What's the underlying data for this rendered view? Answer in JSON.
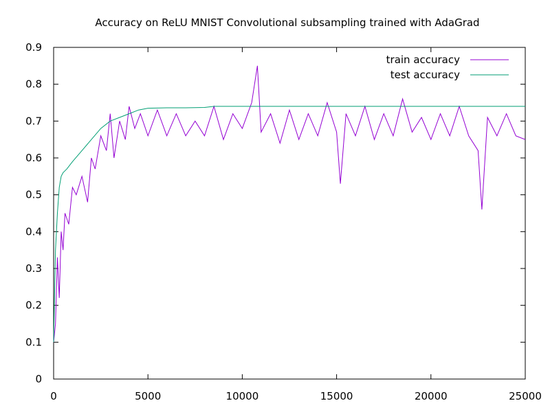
{
  "chart_data": {
    "type": "line",
    "title": "Accuracy on ReLU MNIST Convolutional subsampling trained with AdaGrad",
    "xlabel": "",
    "ylabel": "",
    "xlim": [
      0,
      25000
    ],
    "ylim": [
      0,
      0.9
    ],
    "x_ticks": [
      0,
      5000,
      10000,
      15000,
      20000,
      25000
    ],
    "y_ticks": [
      0,
      0.1,
      0.2,
      0.3,
      0.4,
      0.5,
      0.6,
      0.7,
      0.8,
      0.9
    ],
    "grid": false,
    "legend_position": "top-right",
    "series": [
      {
        "name": "train accuracy",
        "color": "#9400d3",
        "x": [
          0,
          100,
          200,
          300,
          400,
          500,
          600,
          800,
          1000,
          1200,
          1500,
          1800,
          2000,
          2200,
          2500,
          2800,
          3000,
          3200,
          3500,
          3800,
          4000,
          4300,
          4600,
          5000,
          5500,
          6000,
          6500,
          7000,
          7500,
          8000,
          8500,
          9000,
          9500,
          10000,
          10500,
          10800,
          11000,
          11500,
          12000,
          12500,
          13000,
          13500,
          14000,
          14500,
          15000,
          15200,
          15500,
          16000,
          16500,
          17000,
          17500,
          18000,
          18500,
          19000,
          19500,
          20000,
          20500,
          21000,
          21500,
          22000,
          22500,
          22700,
          23000,
          23500,
          24000,
          24500,
          25000
        ],
        "y": [
          0.1,
          0.15,
          0.33,
          0.22,
          0.4,
          0.35,
          0.45,
          0.42,
          0.52,
          0.5,
          0.55,
          0.48,
          0.6,
          0.57,
          0.66,
          0.62,
          0.72,
          0.6,
          0.7,
          0.65,
          0.74,
          0.68,
          0.72,
          0.66,
          0.73,
          0.66,
          0.72,
          0.66,
          0.7,
          0.66,
          0.74,
          0.65,
          0.72,
          0.68,
          0.75,
          0.85,
          0.67,
          0.72,
          0.64,
          0.73,
          0.65,
          0.72,
          0.66,
          0.75,
          0.67,
          0.53,
          0.72,
          0.66,
          0.74,
          0.65,
          0.72,
          0.66,
          0.76,
          0.67,
          0.71,
          0.65,
          0.72,
          0.66,
          0.74,
          0.66,
          0.62,
          0.46,
          0.71,
          0.66,
          0.72,
          0.66,
          0.65
        ]
      },
      {
        "name": "test accuracy",
        "color": "#009e73",
        "x": [
          0,
          100,
          200,
          300,
          400,
          500,
          700,
          1000,
          1500,
          2000,
          2500,
          3000,
          3500,
          4000,
          4500,
          5000,
          6000,
          7000,
          8000,
          8500,
          10000,
          12000,
          15000,
          20000,
          25000
        ],
        "y": [
          0.1,
          0.35,
          0.45,
          0.52,
          0.55,
          0.56,
          0.57,
          0.59,
          0.62,
          0.65,
          0.68,
          0.7,
          0.71,
          0.72,
          0.73,
          0.735,
          0.736,
          0.736,
          0.737,
          0.74,
          0.74,
          0.74,
          0.74,
          0.74,
          0.74
        ]
      }
    ]
  }
}
